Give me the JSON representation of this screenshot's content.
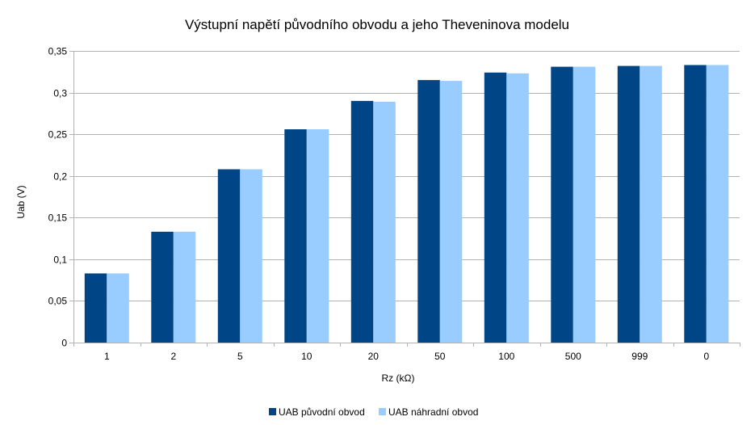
{
  "chart_data": {
    "type": "bar",
    "title": "Výstupní napětí původního obvodu a jeho Theveninova modelu",
    "xlabel": "Rz (kΩ)",
    "ylabel": "Uab (V)",
    "categories": [
      "1",
      "2",
      "5",
      "10",
      "20",
      "50",
      "100",
      "500",
      "999",
      "0"
    ],
    "series": [
      {
        "name": "UAB původní obvod",
        "color": "#004586",
        "values": [
          0.083,
          0.133,
          0.208,
          0.256,
          0.29,
          0.315,
          0.324,
          0.331,
          0.332,
          0.333
        ]
      },
      {
        "name": "UAB náhradní obvod",
        "color": "#99ccff",
        "values": [
          0.083,
          0.133,
          0.208,
          0.256,
          0.289,
          0.314,
          0.323,
          0.331,
          0.332,
          0.333
        ]
      }
    ],
    "ylim": [
      0,
      0.35
    ],
    "yticks": [
      "0",
      "0,05",
      "0,1",
      "0,15",
      "0,2",
      "0,25",
      "0,3",
      "0,35"
    ],
    "grid": true,
    "legend": "bottom"
  }
}
